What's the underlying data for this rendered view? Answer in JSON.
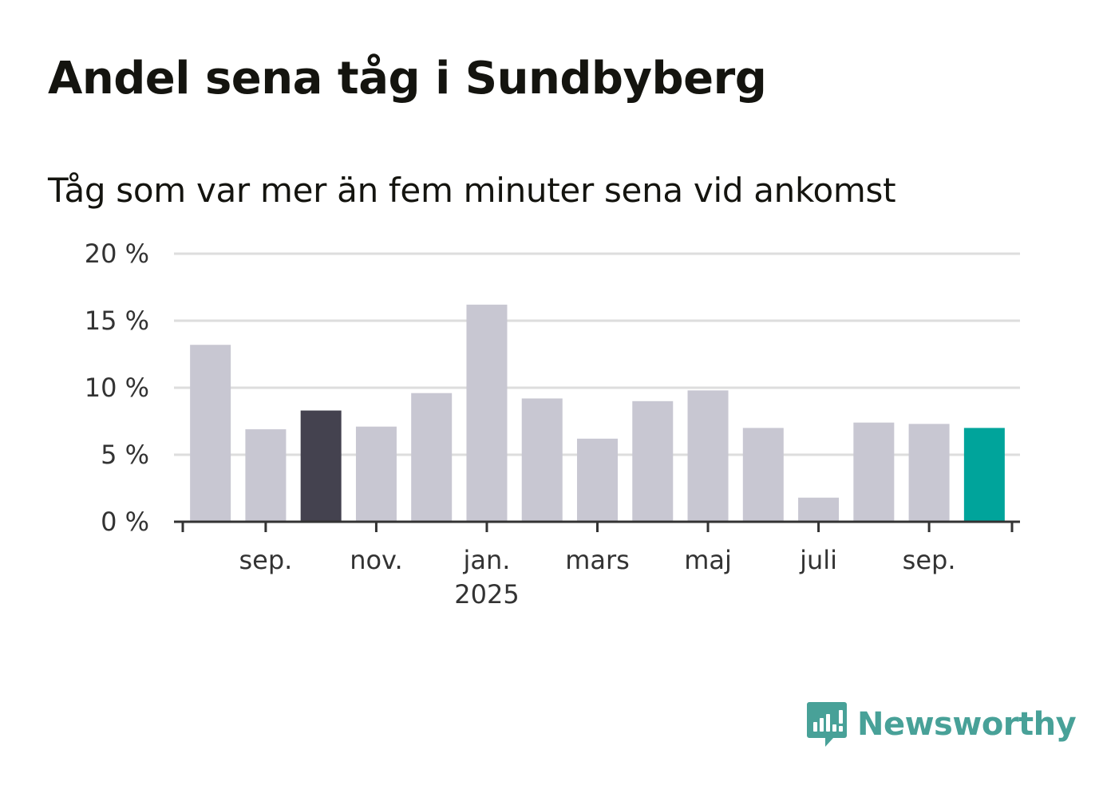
{
  "header": {
    "title": "Andel sena tåg i Sundbyberg",
    "subtitle": "Tåg som var mer än fem minuter sena vid ankomst"
  },
  "brand": {
    "name": "Newsworthy",
    "color": "#48a198"
  },
  "colors": {
    "bar_default": "#c8c7d2",
    "bar_highlight_dark": "#44424f",
    "bar_highlight_current": "#00a49b",
    "gridline": "#dddddd",
    "axis": "#333333"
  },
  "chart_data": {
    "type": "bar",
    "title": "Andel sena tåg i Sundbyberg",
    "subtitle": "Tåg som var mer än fem minuter sena vid ankomst",
    "xlabel": "",
    "ylabel": "",
    "ylim": [
      0,
      20
    ],
    "yticks": [
      0,
      5,
      10,
      15,
      20
    ],
    "ytick_labels": [
      "0 %",
      "5 %",
      "10 %",
      "15 %",
      "20 %"
    ],
    "grid": true,
    "legend": "none",
    "categories": [
      "2024-08",
      "2024-09",
      "2024-10",
      "2024-11",
      "2024-12",
      "2025-01",
      "2025-02",
      "2025-03",
      "2025-04",
      "2025-05",
      "2025-06",
      "2025-07",
      "2025-08",
      "2025-09",
      "2025-10"
    ],
    "values": [
      13.2,
      6.9,
      8.3,
      7.1,
      9.6,
      16.2,
      9.2,
      6.2,
      9.0,
      9.8,
      7.0,
      1.8,
      7.4,
      7.3,
      7.0
    ],
    "highlight": {
      "2024-10": "dark",
      "2025-10": "current"
    },
    "xtick_labels": [
      {
        "category": "2024-09",
        "label": "sep.",
        "sub": ""
      },
      {
        "category": "2024-11",
        "label": "nov.",
        "sub": ""
      },
      {
        "category": "2025-01",
        "label": "jan.",
        "sub": "2025"
      },
      {
        "category": "2025-03",
        "label": "mars",
        "sub": ""
      },
      {
        "category": "2025-05",
        "label": "maj",
        "sub": ""
      },
      {
        "category": "2025-07",
        "label": "juli",
        "sub": ""
      },
      {
        "category": "2025-09",
        "label": "sep.",
        "sub": ""
      }
    ]
  }
}
